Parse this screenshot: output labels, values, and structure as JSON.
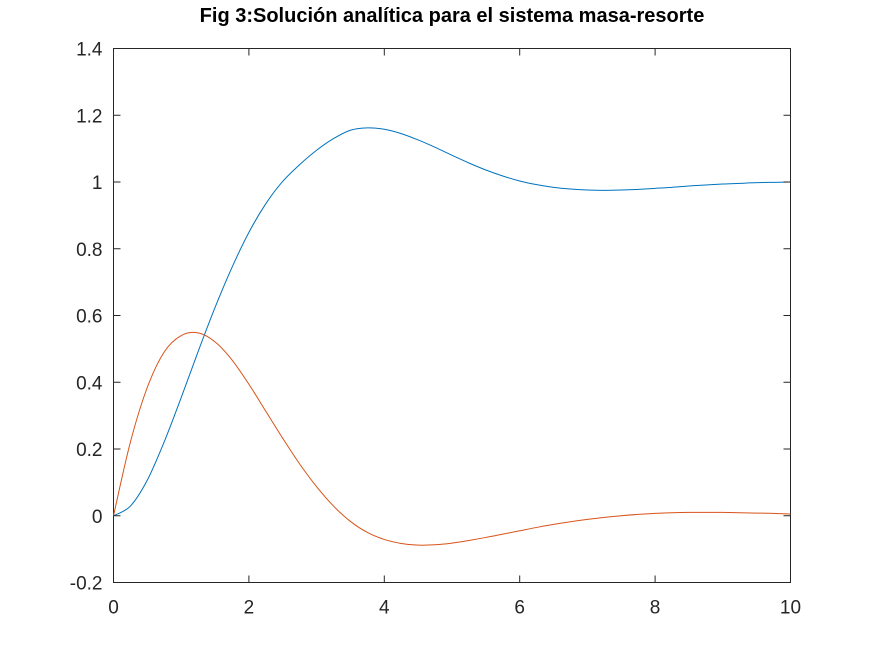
{
  "chart_data": {
    "type": "line",
    "title": "Fig 3:Solución analítica para el sistema masa-resorte",
    "xlabel": "",
    "ylabel": "",
    "xlim": [
      0,
      10
    ],
    "ylim": [
      -0.2,
      1.4
    ],
    "xticks": [
      0,
      2,
      4,
      6,
      8,
      10
    ],
    "yticks": [
      -0.2,
      0,
      0.2,
      0.4,
      0.6,
      0.8,
      1,
      1.2,
      1.4
    ],
    "xtick_labels": [
      "0",
      "2",
      "4",
      "6",
      "8",
      "10"
    ],
    "ytick_labels": [
      "-0.2",
      "0",
      "0.2",
      "0.4",
      "0.6",
      "0.8",
      "1",
      "1.2",
      "1.4"
    ],
    "grid": false,
    "legend": "none",
    "x": [
      0,
      0.25,
      0.5,
      0.75,
      1,
      1.25,
      1.5,
      1.75,
      2,
      2.25,
      2.5,
      2.75,
      3,
      3.25,
      3.5,
      3.75,
      4,
      4.25,
      4.5,
      4.75,
      5,
      5.25,
      5.5,
      5.75,
      6,
      6.25,
      6.5,
      6.75,
      7,
      7.25,
      7.5,
      7.75,
      8,
      8.25,
      8.5,
      8.75,
      9,
      9.25,
      9.5,
      9.75,
      10
    ],
    "series": [
      {
        "color": "#0072bd",
        "values": [
          0,
          0.029,
          0.107,
          0.222,
          0.354,
          0.492,
          0.624,
          0.744,
          0.849,
          0.935,
          1.002,
          1.052,
          1.095,
          1.13,
          1.155,
          1.162,
          1.158,
          1.145,
          1.126,
          1.104,
          1.08,
          1.057,
          1.036,
          1.018,
          1.003,
          0.992,
          0.984,
          0.979,
          0.976,
          0.975,
          0.976,
          0.978,
          0.981,
          0.984,
          0.988,
          0.991,
          0.994,
          0.996,
          0.998,
          0.999,
          1.0
        ]
      },
      {
        "color": "#d95319",
        "values": [
          0,
          0.221,
          0.385,
          0.491,
          0.54,
          0.548,
          0.521,
          0.467,
          0.394,
          0.313,
          0.232,
          0.155,
          0.087,
          0.029,
          -0.017,
          -0.05,
          -0.071,
          -0.083,
          -0.088,
          -0.087,
          -0.082,
          -0.074,
          -0.065,
          -0.055,
          -0.045,
          -0.035,
          -0.026,
          -0.018,
          -0.011,
          -0.005,
          0.0,
          0.004,
          0.007,
          0.009,
          0.01,
          0.01,
          0.01,
          0.009,
          0.008,
          0.007,
          0.005
        ]
      }
    ]
  }
}
